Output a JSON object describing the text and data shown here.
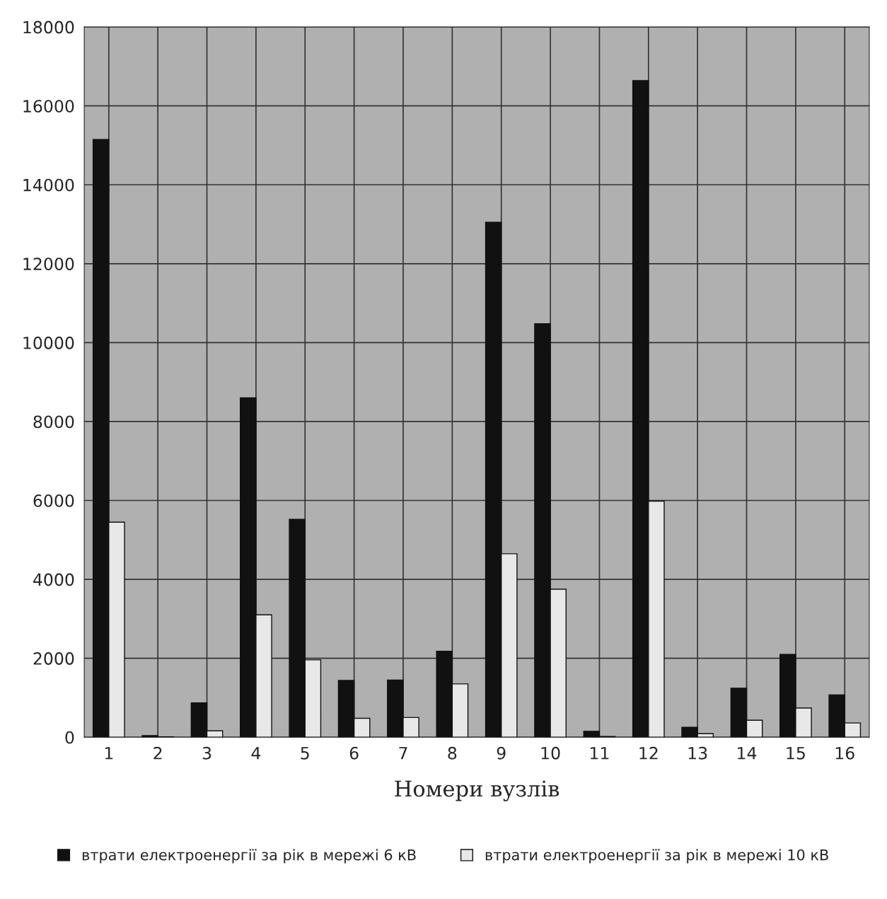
{
  "chart_data": {
    "type": "bar",
    "xlabel": "Номери вузлів",
    "categories": [
      "1",
      "2",
      "3",
      "4",
      "5",
      "6",
      "7",
      "8",
      "9",
      "10",
      "11",
      "12",
      "13",
      "14",
      "15",
      "16"
    ],
    "series": [
      {
        "name": "втрати електроенергії за рік в мережі 6 кВ",
        "color": "#111111",
        "values": [
          15150,
          40,
          870,
          8600,
          5520,
          1440,
          1450,
          2180,
          13050,
          10480,
          150,
          16640,
          250,
          1240,
          2100,
          1070
        ]
      },
      {
        "name": "втрати електроенергії за рік в мережі 10 кВ",
        "color": "#e8e8e8",
        "values": [
          5450,
          10,
          160,
          3100,
          1960,
          480,
          500,
          1350,
          4650,
          3750,
          20,
          5980,
          90,
          430,
          740,
          360
        ]
      }
    ],
    "ylim": [
      0,
      18000
    ],
    "yticks": [
      0,
      2000,
      4000,
      6000,
      8000,
      10000,
      12000,
      14000,
      16000,
      18000
    ],
    "grid": true,
    "legend": "bottom"
  }
}
